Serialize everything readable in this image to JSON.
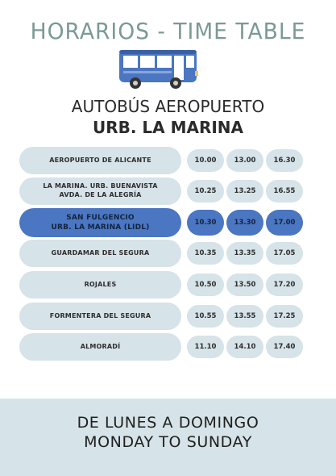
{
  "header": {
    "title": "HORARIOS - TIME TABLE",
    "line1": "AUTOBÚS AEROPUERTO",
    "line2": "URB. LA MARINA",
    "bus_icon": "bus-icon"
  },
  "schedule": [
    {
      "stop": "AEROPUERTO DE ALICANTE",
      "times": [
        "10.00",
        "13.00",
        "16.30"
      ],
      "highlight": false
    },
    {
      "stop": "LA MARINA. URB. BUENAVISTA\nAVDA. DE LA ALEGRÍA",
      "times": [
        "10.25",
        "13.25",
        "16.55"
      ],
      "highlight": false
    },
    {
      "stop": "SAN FULGENCIO\nURB. LA MARINA (LIDL)",
      "times": [
        "10.30",
        "13.30",
        "17.00"
      ],
      "highlight": true
    },
    {
      "stop": "GUARDAMAR DEL SEGURA",
      "times": [
        "10.35",
        "13.35",
        "17.05"
      ],
      "highlight": false
    },
    {
      "stop": "ROJALES",
      "times": [
        "10.50",
        "13.50",
        "17.20"
      ],
      "highlight": false
    },
    {
      "stop": "FORMENTERA DEL SEGURA",
      "times": [
        "10.55",
        "13.55",
        "17.25"
      ],
      "highlight": false
    },
    {
      "stop": "ALMORADÍ",
      "times": [
        "11.10",
        "14.10",
        "17.40"
      ],
      "highlight": false
    }
  ],
  "footer": {
    "line1": "DE LUNES A DOMINGO",
    "line2": "MONDAY TO SUNDAY"
  },
  "colors": {
    "pill": "#d6e3e8",
    "highlight": "#4a76c2",
    "title": "#7a9a94"
  }
}
